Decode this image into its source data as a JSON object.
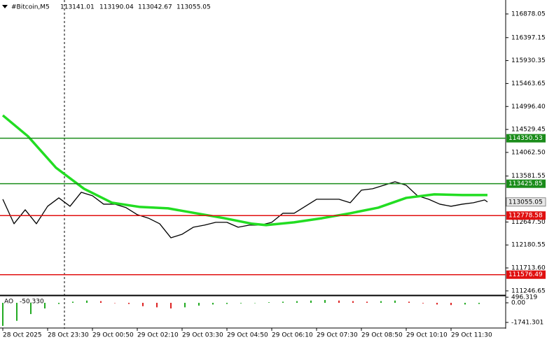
{
  "chart_data": [
    {
      "type": "line",
      "title": "#Bitcoin,M5",
      "ohlc": [
        113141.01,
        113190.04,
        113042.67,
        113055.05
      ],
      "xlim": [
        -1,
        179.5
      ],
      "xticks": [
        {
          "value": 0,
          "label": "28 Oct 2025"
        },
        {
          "value": 16,
          "label": "28 Oct 23:30"
        },
        {
          "value": 32,
          "label": "29 Oct 00:50"
        },
        {
          "value": 48,
          "label": "29 Oct 02:10"
        },
        {
          "value": 64,
          "label": "29 Oct 03:30"
        },
        {
          "value": 80,
          "label": "29 Oct 04:50"
        },
        {
          "value": 96,
          "label": "29 Oct 06:10"
        },
        {
          "value": 112,
          "label": "29 Oct 07:30"
        },
        {
          "value": 128,
          "label": "29 Oct 08:50"
        },
        {
          "value": 144,
          "label": "29 Oct 10:10"
        },
        {
          "value": 160,
          "label": "29 Oct 11:30"
        }
      ],
      "ylim": [
        111160,
        117105
      ],
      "yticks": [
        116878.05,
        116397.15,
        115930.35,
        115463.65,
        {
          "value": 114996.4,
          "label": "114996.40"
        },
        114529.45,
        {
          "value": 114062.5,
          "label": "114062.50"
        },
        113581.55,
        {
          "value": 112647.5,
          "label": "112647.50"
        },
        112180.55,
        {
          "value": 111713.6,
          "label": "111713.60"
        },
        111246.65
      ],
      "series": [
        {
          "color": "#000000",
          "width": 1.3,
          "x": [
            0,
            4,
            8,
            12,
            16,
            20,
            24,
            28,
            32,
            36,
            40,
            44,
            48,
            52,
            56,
            60,
            64,
            68,
            72,
            76,
            80,
            84,
            88,
            92,
            96,
            100,
            104,
            108,
            112,
            116,
            120,
            124,
            128,
            132,
            136,
            140,
            144,
            148,
            152,
            156,
            160,
            164,
            168,
            172,
            173
          ],
          "values": [
            113110,
            112612,
            112896,
            112612,
            112967,
            113138,
            112967,
            113252,
            113181,
            113010,
            113010,
            112939,
            112797,
            112725,
            112612,
            112327,
            112398,
            112541,
            112584,
            112641,
            112641,
            112541,
            112584,
            112584,
            112641,
            112825,
            112825,
            112967,
            113110,
            113110,
            113110,
            113039,
            113295,
            113323,
            113394,
            113465,
            113394,
            113181,
            113110,
            113010,
            112967,
            113010,
            113039,
            113096,
            113055
          ]
        },
        {
          "color": "#22dd22",
          "width": 3.5,
          "x": [
            0,
            9,
            19,
            29,
            39,
            49,
            59,
            69,
            79,
            89,
            94,
            104,
            114,
            124,
            134,
            144,
            154,
            164,
            173
          ],
          "values": [
            114816,
            114389,
            113750,
            113323,
            113039,
            112953,
            112925,
            112825,
            112725,
            112612,
            112584,
            112641,
            112725,
            112825,
            112939,
            113138,
            113210,
            113195,
            113195
          ]
        }
      ],
      "levels": [
        {
          "value": 114350.53,
          "color": "#1a8c1a"
        },
        {
          "value": 113425.85,
          "color": "#1a8c1a"
        },
        {
          "value": 112778.58,
          "color": "#e01010"
        },
        {
          "value": 111576.49,
          "color": "#e01010"
        }
      ]
    },
    {
      "type": "bar",
      "title": "AO",
      "value": -50.33,
      "value_label": "-50.330",
      "x": [
        0,
        5,
        10,
        15,
        20,
        25,
        30,
        35,
        40,
        45,
        50,
        55,
        60,
        65,
        70,
        75,
        80,
        85,
        90,
        95,
        100,
        105,
        110,
        115,
        120,
        125,
        130,
        135,
        140,
        145,
        150,
        155,
        160,
        165,
        170
      ],
      "values": [
        -2050,
        -1600,
        -1000,
        -500,
        -100,
        100,
        200,
        150,
        0,
        -100,
        -300,
        -400,
        -500,
        -400,
        -250,
        -150,
        -100,
        -50,
        0,
        50,
        100,
        150,
        200,
        250,
        200,
        150,
        100,
        150,
        200,
        100,
        -50,
        -150,
        -200,
        -150,
        -100
      ],
      "ylim": [
        -2177,
        558
      ],
      "yticks": [
        496.319,
        {
          "value": 0,
          "label": "0.00"
        },
        -1741.301
      ]
    }
  ]
}
